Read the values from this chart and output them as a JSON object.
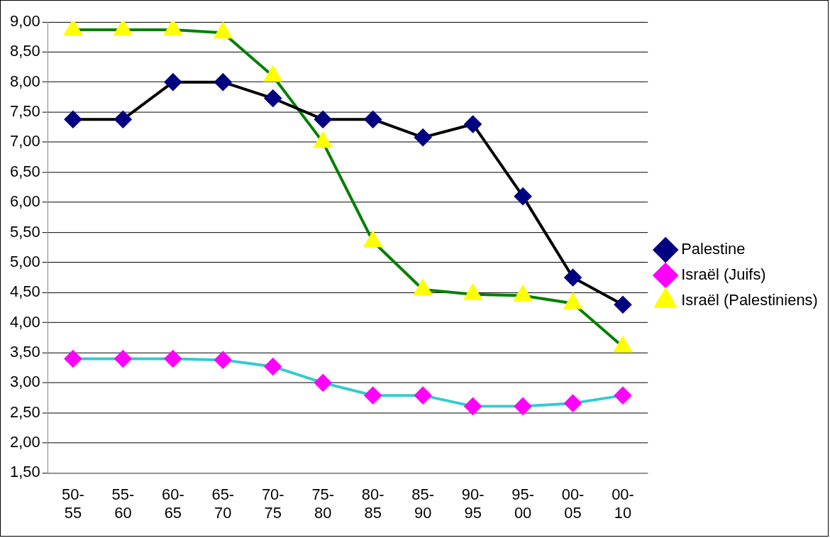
{
  "chart_data": {
    "type": "line",
    "categories": [
      "50-55",
      "55-60",
      "60-65",
      "65-70",
      "70-75",
      "75-80",
      "80-85",
      "85-90",
      "90-95",
      "95-00",
      "00-05",
      "00-10"
    ],
    "series": [
      {
        "name": "Palestine",
        "color": "#000000",
        "marker": "diamond",
        "colors": [
          "#000080",
          "#000080",
          "#000080",
          "#000080",
          "#000080",
          "#000080",
          "#000080",
          "#000080",
          "#000080",
          "#000080",
          "#000080",
          "#000080"
        ],
        "values": [
          7.38,
          7.38,
          8.0,
          8.0,
          7.73,
          7.38,
          7.38,
          7.08,
          7.3,
          6.1,
          4.75,
          4.3
        ]
      },
      {
        "name": "Israël (Juifs)",
        "color": "#33cccc",
        "marker": "diamond",
        "colors": [
          "#ff00ff",
          "#ff00ff",
          "#ff00ff",
          "#ff00ff",
          "#ff00ff",
          "#ff00ff",
          "#ff00ff",
          "#ff00ff",
          "#ff00ff",
          "#ff00ff",
          "#ff00ff",
          "#ff00ff"
        ],
        "values": [
          3.4,
          3.4,
          3.4,
          3.38,
          3.27,
          3.0,
          2.79,
          2.79,
          2.61,
          2.61,
          2.66,
          2.79
        ]
      },
      {
        "name": "Israël (Palestiniens)",
        "color": "#008000",
        "marker": "triangle",
        "colors": [
          "#ffff00",
          "#ffff00",
          "#ffff00",
          "#ffff00",
          "#ffff00",
          "#ffff00",
          "#ffff00",
          "#ffff00",
          "#ffff00",
          "#ffff00",
          "#ffff00",
          "#ffff00"
        ],
        "values": [
          8.87,
          8.87,
          8.87,
          8.82,
          8.1,
          7.0,
          5.35,
          4.55,
          4.47,
          4.45,
          4.32,
          3.6
        ]
      }
    ],
    "ylim": [
      1.5,
      9.0
    ],
    "yticks": [
      {
        "value": 1.5,
        "label": "1,50"
      },
      {
        "value": 2.0,
        "label": "2,00"
      },
      {
        "value": 2.5,
        "label": "2,50"
      },
      {
        "value": 3.0,
        "label": "3,00"
      },
      {
        "value": 3.5,
        "label": "3,50"
      },
      {
        "value": 4.0,
        "label": "4,00"
      },
      {
        "value": 4.5,
        "label": "4,50"
      },
      {
        "value": 5.0,
        "label": "5,00"
      },
      {
        "value": 5.5,
        "label": "5,50"
      },
      {
        "value": 6.0,
        "label": "6,00"
      },
      {
        "value": 6.5,
        "label": "6,50"
      },
      {
        "value": 7.0,
        "label": "7,00"
      },
      {
        "value": 7.5,
        "label": "7,50"
      },
      {
        "value": 8.0,
        "label": "8,00"
      },
      {
        "value": 8.5,
        "label": "8,50"
      },
      {
        "value": 9.0,
        "label": "9,00"
      }
    ],
    "grid": "y",
    "legend": "right",
    "line_style": "solid"
  }
}
